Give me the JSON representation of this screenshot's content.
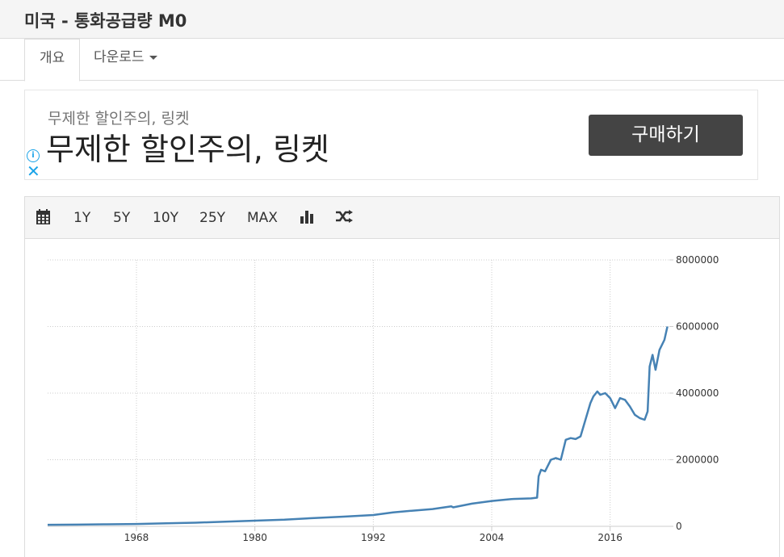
{
  "page": {
    "title": "미국 - 통화공급량 M0"
  },
  "tabs": [
    {
      "label": "개요",
      "active": true
    },
    {
      "label": "다운로드",
      "active": false
    }
  ],
  "ad": {
    "small_text": "무제한 할인주의, 링켓",
    "headline": "무제한 할인주의, 링켓",
    "button_label": "구매하기",
    "info_icon": "info-icon",
    "close_icon": "close-icon"
  },
  "toolbar": {
    "calendar_icon": "calendar-icon",
    "ranges": [
      "1Y",
      "5Y",
      "10Y",
      "25Y",
      "MAX"
    ],
    "bar_icon": "bar-chart-icon",
    "compare_icon": "shuffle-icon"
  },
  "colors": {
    "line": "#4682b4",
    "grid": "#cccccc",
    "button": "#444444",
    "ad_icon": "#1aa3e8"
  },
  "chart_data": {
    "type": "line",
    "title": "",
    "xlabel": "",
    "ylabel": "",
    "x_ticks": [
      "1968",
      "1980",
      "1992",
      "2004",
      "2016"
    ],
    "y_ticks": [
      "0",
      "2000000",
      "4000000",
      "6000000",
      "8000000"
    ],
    "xlim": [
      1959,
      2022
    ],
    "ylim": [
      0,
      8000000
    ],
    "grid": true,
    "y_axis_position": "right",
    "series": [
      {
        "x": [
          1959.0,
          1962.0,
          1965.0,
          1968.0,
          1971.0,
          1974.0,
          1977.0,
          1980.0,
          1983.0,
          1986.0,
          1989.0,
          1992.0,
          1994.0,
          1996.0,
          1998.0,
          1999.9,
          2000.1,
          2002.0,
          2004.0,
          2006.0,
          2008.0,
          2008.6,
          2008.75,
          2009.0,
          2009.4,
          2010.0,
          2010.5,
          2011.0,
          2011.5,
          2012.0,
          2012.5,
          2013.0,
          2013.5,
          2014.0,
          2014.3,
          2014.7,
          2015.0,
          2015.5,
          2016.0,
          2016.5,
          2017.0,
          2017.5,
          2018.0,
          2018.5,
          2019.0,
          2019.5,
          2019.8,
          2020.0,
          2020.3,
          2020.6,
          2021.0,
          2021.5,
          2021.8
        ],
        "values": [
          45000,
          50000,
          60000,
          70000,
          90000,
          110000,
          140000,
          170000,
          200000,
          250000,
          290000,
          340000,
          420000,
          470000,
          520000,
          600000,
          570000,
          680000,
          760000,
          820000,
          840000,
          860000,
          1500000,
          1700000,
          1650000,
          2000000,
          2050000,
          2000000,
          2600000,
          2650000,
          2620000,
          2700000,
          3200000,
          3700000,
          3900000,
          4050000,
          3950000,
          4000000,
          3850000,
          3550000,
          3850000,
          3800000,
          3600000,
          3350000,
          3250000,
          3200000,
          3450000,
          4800000,
          5150000,
          4700000,
          5300000,
          5600000,
          6000000
        ]
      }
    ]
  }
}
